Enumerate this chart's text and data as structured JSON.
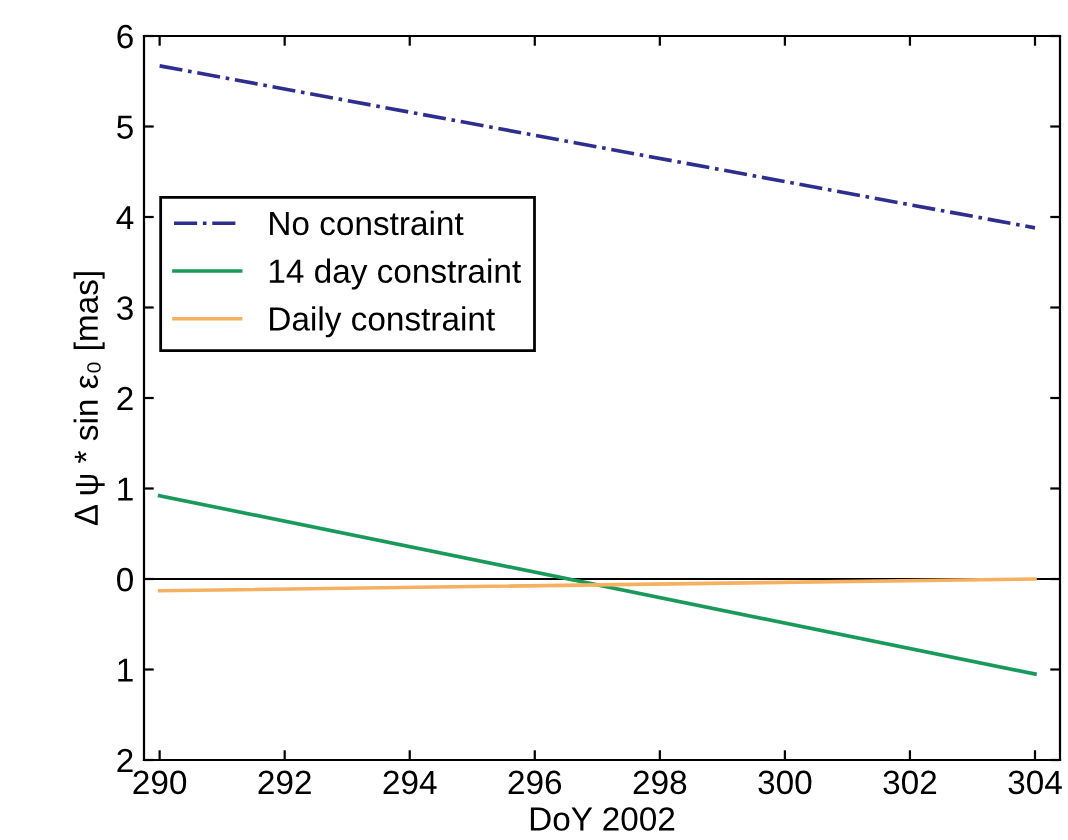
{
  "chart_data": {
    "type": "line",
    "xlabel": "DoY 2002",
    "ylabel": "Δ ψ * sin ε₀ [mas]",
    "x": [
      290,
      304
    ],
    "series": [
      {
        "name": "No constraint",
        "color": "#2e2e8f",
        "line_style": "dashdot",
        "values": [
          5.67,
          3.88
        ]
      },
      {
        "name": "14 day constraint",
        "color": "#1a9a5a",
        "line_style": "solid",
        "values": [
          0.92,
          -1.05
        ]
      },
      {
        "name": "Daily constraint",
        "color": "#f5b060",
        "line_style": "solid",
        "values": [
          -0.13,
          0.0
        ]
      }
    ],
    "xlim": [
      289.75,
      304.4
    ],
    "xticks": [
      290,
      292,
      294,
      296,
      298,
      300,
      302,
      304
    ],
    "ylim": [
      -2,
      6
    ],
    "yticks": [
      {
        "value": -2,
        "label": "2"
      },
      {
        "value": -1,
        "label": "1"
      },
      0,
      1,
      2,
      3,
      4,
      5,
      6
    ],
    "ref_lines": [
      {
        "axis": "y",
        "value": 0,
        "color": "#000000"
      }
    ],
    "legend": "upper left",
    "grid": false,
    "marker": "none"
  }
}
